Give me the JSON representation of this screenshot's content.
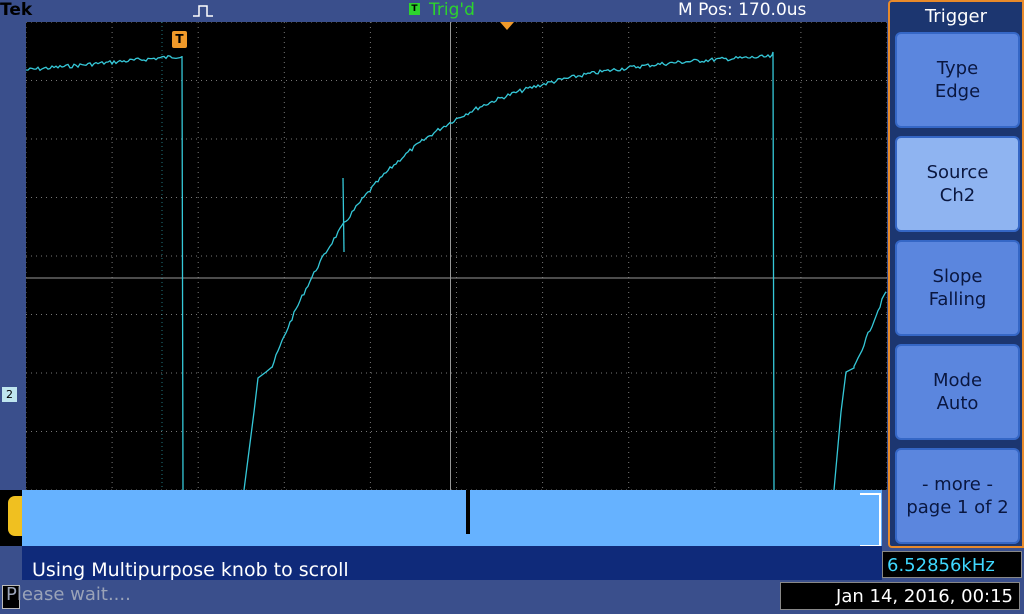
{
  "header": {
    "brand": "Tek",
    "trigger_badge": "T",
    "trigger_status": "Trig'd",
    "horizontal_position": "M Pos: 170.0us"
  },
  "waveform": {
    "trigger_marker": "T",
    "channel_marker": "2",
    "trace_color": "#35c8d8"
  },
  "trigger_menu": {
    "title": "Trigger",
    "buttons": [
      {
        "line1": "Type",
        "line2": "Edge"
      },
      {
        "line1": "Source",
        "line2": "Ch2"
      },
      {
        "line1": "Slope",
        "line2": "Falling"
      },
      {
        "line1": "Mode",
        "line2": "Auto"
      },
      {
        "line1": "- more -",
        "line2": "page 1 of 2"
      }
    ]
  },
  "scroll_hint": "Using Multipurpose knob to scroll",
  "readouts": {
    "frequency": "6.52856kHz",
    "status_message": "Please wait....",
    "datetime": "Jan 14, 2016, 00:15"
  },
  "colors": {
    "accent": "#e88a2a",
    "trig_green": "#2dd32d",
    "menu_blue": "#5b86de"
  }
}
